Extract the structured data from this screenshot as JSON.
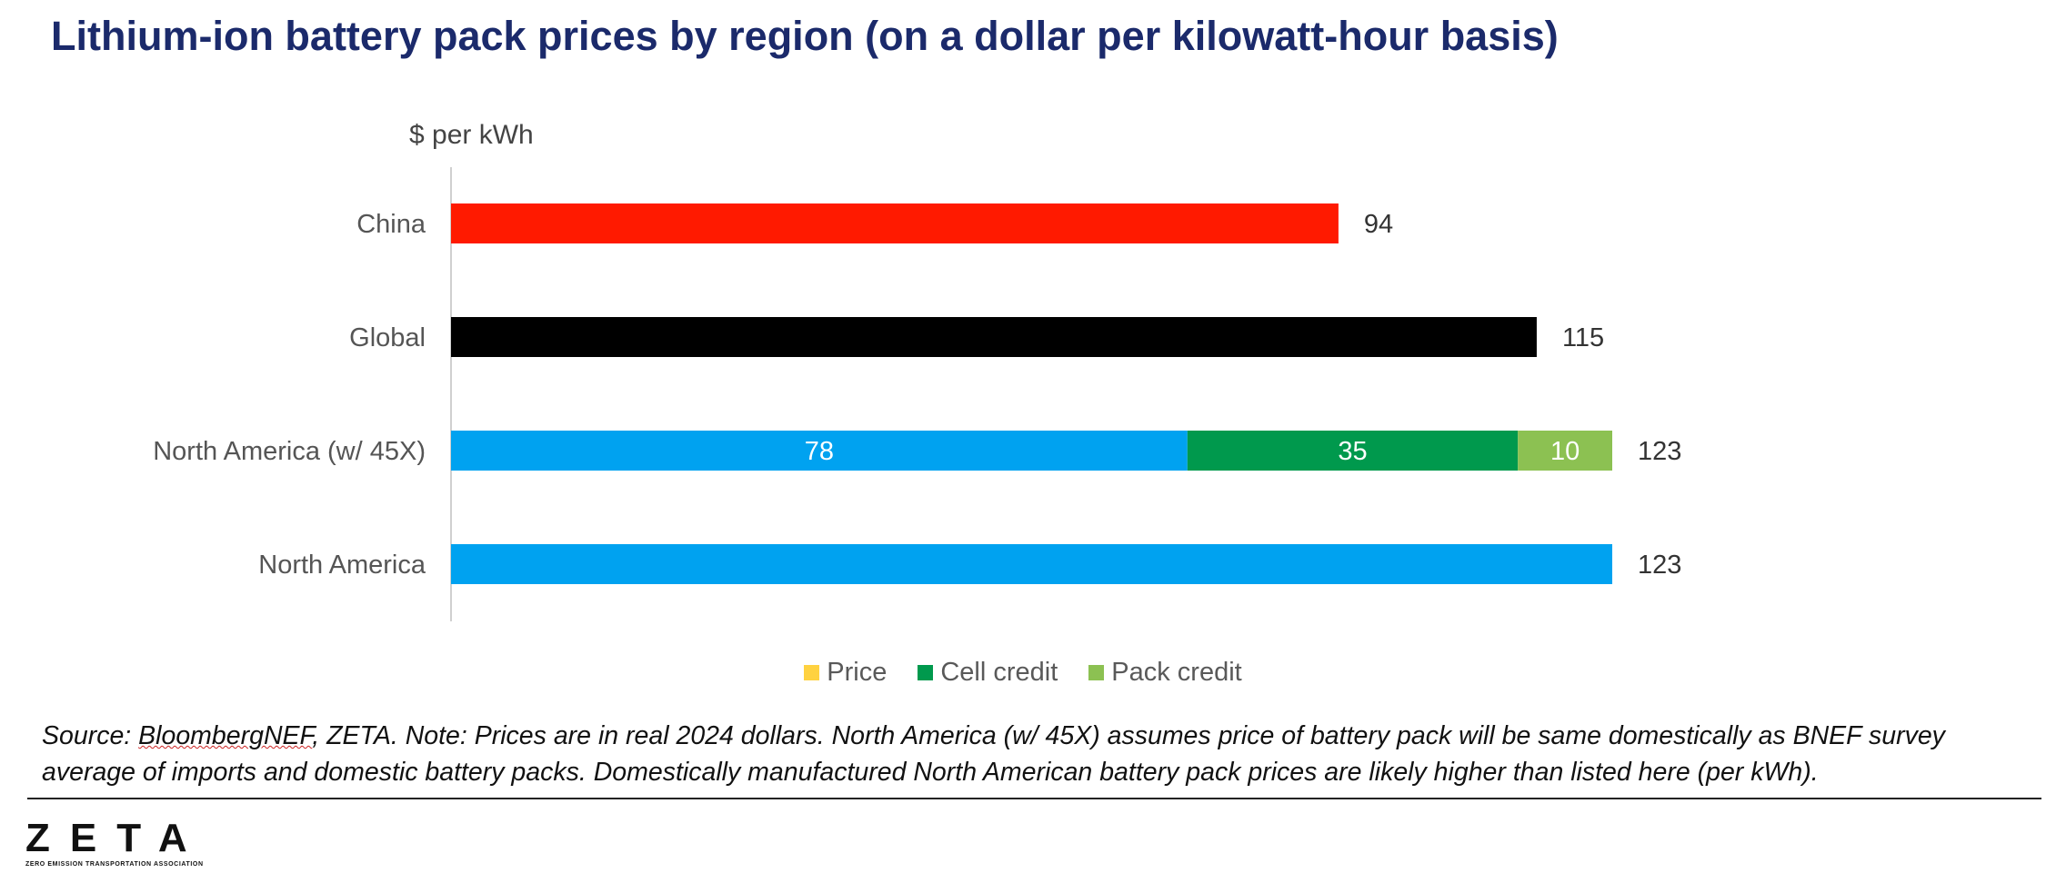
{
  "title": "Lithium-ion battery pack prices by region (on a dollar per kilowatt-hour basis)",
  "chart_data": {
    "type": "bar",
    "orientation": "horizontal",
    "stacked": true,
    "unit_label": "$ per kWh",
    "categories": [
      "China",
      "Global",
      "North America (w/ 45X)",
      "North America"
    ],
    "series": [
      {
        "name": "Price",
        "values": [
          94,
          115,
          78,
          123
        ],
        "colors": [
          "#ff1a00",
          "#000000",
          "#00a2f0",
          "#00a2f0"
        ]
      },
      {
        "name": "Cell credit",
        "values": [
          0,
          0,
          35,
          0
        ],
        "color": "#00994d"
      },
      {
        "name": "Pack credit",
        "values": [
          0,
          0,
          10,
          0
        ],
        "color": "#8cc152"
      }
    ],
    "totals": [
      "94",
      "115",
      "123",
      "123"
    ],
    "segment_labels": [
      [
        "",
        "",
        ""
      ],
      [
        "",
        "",
        ""
      ],
      [
        "78",
        "35",
        "10"
      ],
      [
        "",
        "",
        ""
      ]
    ],
    "xlim": [
      0,
      123
    ],
    "legend": [
      {
        "label": "Price",
        "color": "#ffd240"
      },
      {
        "label": "Cell credit",
        "color": "#00994d"
      },
      {
        "label": "Pack credit",
        "color": "#8cc152"
      }
    ],
    "legend_position": "bottom"
  },
  "source_note": {
    "prefix": "Source: ",
    "link": "BloombergNEF",
    "rest": ", ZETA. Note: Prices are in real 2024 dollars. North America (w/ 45X) assumes price of battery pack will be same domestically as BNEF survey average of imports and domestic battery packs. Domestically manufactured North American battery pack prices are likely higher than listed here (per kWh)."
  },
  "logo": {
    "mark": "ZETA",
    "tagline": "ZERO EMISSION TRANSPORTATION ASSOCIATION"
  }
}
